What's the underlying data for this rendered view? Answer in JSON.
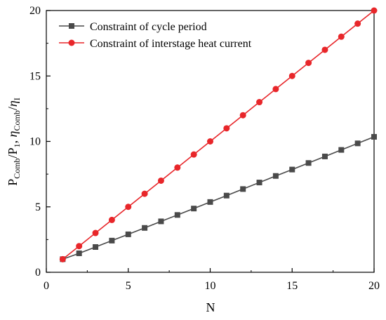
{
  "chart_data": {
    "type": "line",
    "x": [
      1,
      2,
      3,
      4,
      5,
      6,
      7,
      8,
      9,
      10,
      11,
      12,
      13,
      14,
      15,
      16,
      17,
      18,
      19,
      20
    ],
    "series": [
      {
        "name": "Constraint of cycle period",
        "color": "#4a4a4a",
        "marker": "square",
        "values": [
          1.0,
          1.45,
          1.93,
          2.42,
          2.9,
          3.39,
          3.89,
          4.38,
          4.87,
          5.37,
          5.86,
          6.36,
          6.86,
          7.36,
          7.85,
          8.35,
          8.85,
          9.35,
          9.85,
          10.35
        ]
      },
      {
        "name": "Constraint of interstage heat current",
        "color": "#e8262a",
        "marker": "circle",
        "values": [
          1,
          2,
          3,
          4,
          5,
          6,
          7,
          8,
          9,
          10,
          11,
          12,
          13,
          14,
          15,
          16,
          17,
          18,
          19,
          20
        ]
      }
    ],
    "xlabel": "N",
    "ylabel": {
      "p": "P",
      "p_sub": "Comb",
      "slash1": "/P",
      "p1_sub": "1",
      "comma": ", ",
      "eta": "η",
      "eta_sub": "Comb",
      "slash2": "/",
      "eta2": "η",
      "eta2_sub": "I"
    },
    "xlim": [
      0,
      20
    ],
    "ylim": [
      0,
      20
    ],
    "xticks": [
      0,
      5,
      10,
      15,
      20
    ],
    "yticks": [
      0,
      5,
      10,
      15,
      20
    ],
    "grid": false,
    "legend_position": "top-left"
  }
}
